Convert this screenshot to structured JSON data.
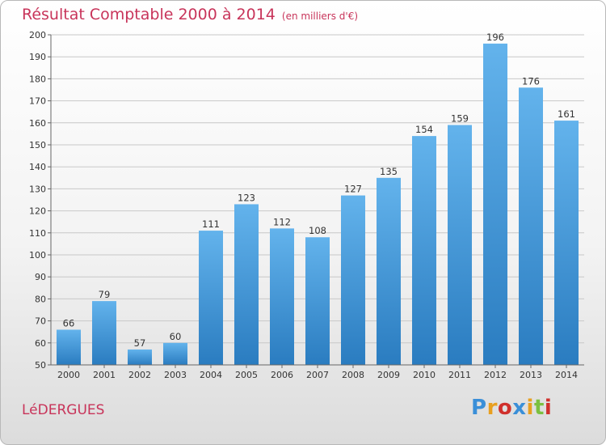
{
  "title": "Résultat Comptable 2000 à 2014",
  "subtitle": "(en milliers d'€)",
  "commune": "LéDERGUES",
  "logo": [
    "P",
    "r",
    "o",
    "x",
    "i",
    "t",
    "i"
  ],
  "logo_colors": [
    "#3a8fd8",
    "#e8a020",
    "#d0302c",
    "#3a8fd8",
    "#e8a020",
    "#7cc040",
    "#d0302c"
  ],
  "colors": {
    "bar_light": "#63b3ec",
    "bar_dark": "#2a7cc0",
    "title": "#c8345a"
  },
  "chart_data": {
    "type": "bar",
    "categories": [
      "2000",
      "2001",
      "2002",
      "2003",
      "2004",
      "2005",
      "2006",
      "2007",
      "2008",
      "2009",
      "2010",
      "2011",
      "2012",
      "2013",
      "2014"
    ],
    "values": [
      66,
      79,
      57,
      60,
      111,
      123,
      112,
      108,
      127,
      135,
      154,
      159,
      196,
      176,
      161
    ],
    "ylim": [
      50,
      200
    ],
    "yticks": [
      50,
      60,
      70,
      80,
      90,
      100,
      110,
      120,
      130,
      140,
      150,
      160,
      170,
      180,
      190,
      200
    ],
    "grid": true
  }
}
